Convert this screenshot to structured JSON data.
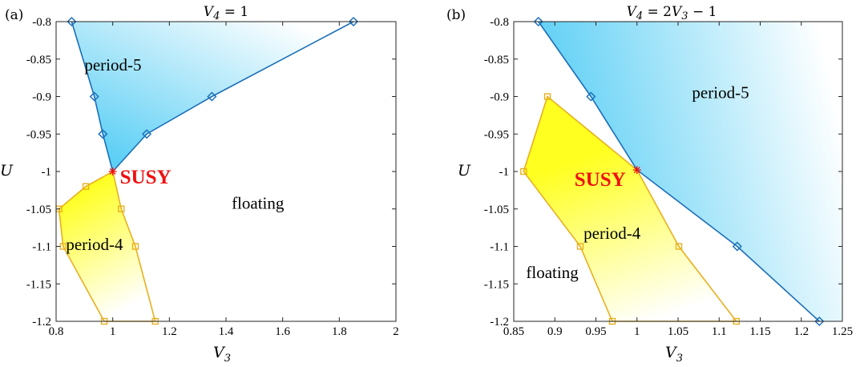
{
  "chart_data": [
    {
      "type": "area",
      "panel_letter": "(a)",
      "title": "V_4 = 1",
      "title_parts": {
        "var": "V",
        "sub": "4",
        "rest": " = 1"
      },
      "xlabel": {
        "var": "V",
        "sub": "3"
      },
      "ylabel": "U",
      "xlim": [
        0.8,
        2.0
      ],
      "ylim": [
        -1.2,
        -0.8
      ],
      "xticks": [
        0.8,
        1,
        1.2,
        1.4,
        1.6,
        1.8,
        2
      ],
      "xtick_labels": [
        "0.8",
        "1",
        "1.2",
        "1.4",
        "1.6",
        "1.8",
        "2"
      ],
      "yticks": [
        -0.8,
        -0.85,
        -0.9,
        -0.95,
        -1,
        -1.05,
        -1.1,
        -1.15,
        -1.2
      ],
      "ytick_labels": [
        "-0.8",
        "-0.85",
        "-0.9",
        "-0.95",
        "-1",
        "-1.05",
        "-1.1",
        "-1.15",
        "-1.2"
      ],
      "grid": false,
      "regions": [
        {
          "label": "period-5",
          "color": "#1c6fb8",
          "fill_colors": [
            "#5fd0f5",
            "#ffffff"
          ],
          "marker": "diamond",
          "boundary": [
            [
              0.855,
              -0.8
            ],
            [
              0.935,
              -0.9
            ],
            [
              0.965,
              -0.95
            ],
            [
              1.0,
              -1.0
            ],
            [
              1.12,
              -0.95
            ],
            [
              1.35,
              -0.9
            ],
            [
              1.85,
              -0.8
            ]
          ],
          "markers": [
            [
              0.855,
              -0.8
            ],
            [
              0.935,
              -0.9
            ],
            [
              0.965,
              -0.95
            ],
            [
              1.12,
              -0.95
            ],
            [
              1.35,
              -0.9
            ],
            [
              1.85,
              -0.8
            ]
          ],
          "label_pos": [
            0.9,
            -0.865
          ]
        },
        {
          "label": "period-4",
          "color": "#e8b020",
          "fill_colors": [
            "#ffff20",
            "#ffffff"
          ],
          "marker": "square",
          "boundary": [
            [
              1.0,
              -1.0
            ],
            [
              0.905,
              -1.02
            ],
            [
              0.81,
              -1.05
            ],
            [
              0.825,
              -1.1
            ],
            [
              0.97,
              -1.2
            ],
            [
              1.15,
              -1.2
            ],
            [
              1.08,
              -1.1
            ],
            [
              1.03,
              -1.05
            ],
            [
              1.0,
              -1.0
            ]
          ],
          "markers": [
            [
              0.905,
              -1.02
            ],
            [
              0.81,
              -1.05
            ],
            [
              0.825,
              -1.1
            ],
            [
              0.97,
              -1.2
            ],
            [
              1.15,
              -1.2
            ],
            [
              1.08,
              -1.1
            ],
            [
              1.03,
              -1.05
            ]
          ],
          "label_pos": [
            0.835,
            -1.105
          ]
        }
      ],
      "annotations": [
        {
          "text": "SUSY",
          "x": 1.0,
          "y": -1.0,
          "color": "#ee1111",
          "marker": "asterisk"
        },
        {
          "text": "floating",
          "x": 1.42,
          "y": -1.042
        }
      ]
    },
    {
      "type": "area",
      "panel_letter": "(b)",
      "title": "V_4 = 2V_3 - 1",
      "title_parts": {
        "var": "V",
        "sub": "4",
        "rest": " = 2",
        "var2": "V",
        "sub2": "3",
        "rest2": " − 1"
      },
      "xlabel": {
        "var": "V",
        "sub": "3"
      },
      "ylabel": "U",
      "xlim": [
        0.85,
        1.25
      ],
      "ylim": [
        -1.2,
        -0.8
      ],
      "xticks": [
        0.85,
        0.9,
        0.95,
        1,
        1.05,
        1.1,
        1.15,
        1.2,
        1.25
      ],
      "xtick_labels": [
        "0.85",
        "0.9",
        "0.95",
        "1",
        "1.05",
        "1.1",
        "1.15",
        "1.2",
        "1.25"
      ],
      "yticks": [
        -0.8,
        -0.85,
        -0.9,
        -0.95,
        -1,
        -1.05,
        -1.1,
        -1.15,
        -1.2
      ],
      "ytick_labels": [
        "-0.8",
        "-0.85",
        "-0.9",
        "-0.95",
        "-1",
        "-1.05",
        "-1.1",
        "-1.15",
        "-1.2"
      ],
      "grid": false,
      "regions": [
        {
          "label": "period-5",
          "color": "#1c6fb8",
          "fill_colors": [
            "#5fd0f5",
            "#ffffff"
          ],
          "marker": "diamond",
          "boundary": [
            [
              0.88,
              -0.8
            ],
            [
              0.944,
              -0.9
            ],
            [
              1.0,
              -0.998
            ],
            [
              1.122,
              -1.1
            ],
            [
              1.222,
              -1.2
            ],
            [
              1.25,
              -1.2
            ],
            [
              1.25,
              -0.8
            ]
          ],
          "markers": [
            [
              0.88,
              -0.8
            ],
            [
              0.944,
              -0.9
            ],
            [
              1.122,
              -1.1
            ],
            [
              1.222,
              -1.2
            ]
          ],
          "label_pos": [
            1.067,
            -0.902
          ]
        },
        {
          "label": "period-4",
          "color": "#e8b020",
          "fill_colors": [
            "#ffff20",
            "#ffffff"
          ],
          "marker": "square",
          "boundary": [
            [
              0.891,
              -0.9
            ],
            [
              1.0,
              -0.998
            ],
            [
              1.051,
              -1.1
            ],
            [
              1.121,
              -1.2
            ],
            [
              0.97,
              -1.2
            ],
            [
              0.931,
              -1.1
            ],
            [
              0.862,
              -1.0
            ]
          ],
          "markers": [
            [
              0.891,
              -0.9
            ],
            [
              1.051,
              -1.1
            ],
            [
              1.121,
              -1.2
            ],
            [
              0.97,
              -1.2
            ],
            [
              0.931,
              -1.1
            ],
            [
              0.862,
              -1.0
            ]
          ],
          "label_pos": [
            0.935,
            -1.09
          ]
        }
      ],
      "annotations": [
        {
          "text": "SUSY",
          "x": 1.0,
          "y": -0.998,
          "color": "#ee1111",
          "marker": "asterisk"
        },
        {
          "text": "floating",
          "x": 0.865,
          "y": -1.135
        }
      ]
    }
  ]
}
